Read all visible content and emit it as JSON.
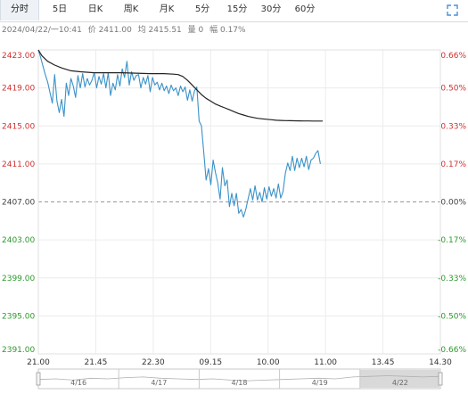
{
  "tabs": [
    {
      "label": "分时",
      "active": true
    },
    {
      "label": "5日",
      "active": false
    },
    {
      "label": "日K",
      "active": false
    },
    {
      "label": "周K",
      "active": false
    },
    {
      "label": "月K",
      "active": false
    },
    {
      "label": "5分",
      "active": false
    },
    {
      "label": "15分",
      "active": false
    },
    {
      "label": "30分",
      "active": false
    },
    {
      "label": "60分",
      "active": false
    }
  ],
  "info": {
    "datetime": "2024/04/22/一10:41",
    "price": "价 2411.00",
    "avg": "均 2415.51",
    "volume": "量 0",
    "change": "幅 0.17%"
  },
  "chart_data": {
    "type": "line",
    "y_left_ticks": [
      "2423.00",
      "2419.00",
      "2415.00",
      "2411.00",
      "2407.00",
      "2403.00",
      "2399.00",
      "2395.00",
      "2391.00"
    ],
    "y_right_ticks": [
      "0.66%",
      "0.50%",
      "0.33%",
      "0.17%",
      "0.00%",
      "-0.17%",
      "-0.33%",
      "-0.50%",
      "-0.66%"
    ],
    "ylim": [
      2391,
      2423
    ],
    "reference": 2407,
    "x_ticks": [
      "21.00",
      "21.45",
      "22.30",
      "09.15",
      "10.00",
      "11.00",
      "13.45",
      "14.30"
    ],
    "x_range_minutes": [
      0,
      345
    ],
    "series": [
      {
        "color": "#3a92c8",
        "x": [
          0,
          2,
          4,
          6,
          8,
          10,
          12,
          14,
          16,
          18,
          20,
          22,
          24,
          26,
          28,
          30,
          32,
          34,
          36,
          38,
          40,
          42,
          44,
          46,
          48,
          50,
          52,
          54,
          56,
          58,
          60,
          62,
          64,
          66,
          68,
          70,
          72,
          74,
          76,
          78,
          80,
          82,
          84,
          86,
          88,
          90,
          92,
          94,
          96,
          98,
          100,
          102,
          104,
          106,
          108,
          110,
          112,
          114,
          116,
          118,
          120,
          122,
          124,
          126,
          128,
          130,
          132,
          134,
          136,
          138,
          140,
          142,
          144,
          146,
          148,
          150,
          152,
          154,
          156,
          158,
          160,
          162,
          164,
          166,
          168,
          170,
          172,
          174,
          176,
          178,
          180,
          182,
          184,
          186,
          188,
          190,
          192,
          194,
          196,
          198,
          200,
          202,
          204,
          206,
          208,
          210,
          212,
          214,
          216,
          218,
          220,
          222,
          224,
          226,
          228,
          230,
          232,
          234,
          236,
          238,
          240,
          242
        ],
        "values": [
          2423.0,
          2422.2,
          2421.3,
          2420.4,
          2419.6,
          2418.5,
          2417.4,
          2420.4,
          2417.6,
          2416.4,
          2417.8,
          2416.0,
          2419.5,
          2418.2,
          2420.0,
          2419.2,
          2418.0,
          2420.3,
          2419.0,
          2420.5,
          2419.1,
          2420.0,
          2419.3,
          2419.8,
          2420.6,
          2419.0,
          2420.2,
          2419.4,
          2420.5,
          2419.0,
          2420.6,
          2418.2,
          2419.5,
          2418.8,
          2420.4,
          2419.2,
          2421.0,
          2420.1,
          2421.8,
          2419.3,
          2420.7,
          2419.8,
          2420.3,
          2420.4,
          2419.0,
          2420.1,
          2419.4,
          2420.3,
          2418.6,
          2420.1,
          2419.3,
          2419.6,
          2418.8,
          2419.5,
          2418.7,
          2419.2,
          2418.4,
          2419.3,
          2418.7,
          2419.0,
          2418.2,
          2419.2,
          2418.6,
          2419.1,
          2417.7,
          2418.8,
          2417.6,
          2418.7,
          2419.1,
          2415.5,
          2415.0,
          2412.2,
          2409.3,
          2410.5,
          2408.8,
          2411.4,
          2410.1,
          2409.0,
          2407.3,
          2410.6,
          2408.7,
          2409.3,
          2406.5,
          2407.9,
          2406.6,
          2407.9,
          2405.8,
          2406.2,
          2405.4,
          2406.2,
          2407.3,
          2408.4,
          2407.2,
          2408.7,
          2407.2,
          2408.0,
          2407.0,
          2408.5,
          2407.3,
          2408.6,
          2407.6,
          2408.4,
          2407.4,
          2408.9,
          2407.4,
          2408.1,
          2410.0,
          2411.1,
          2410.3,
          2411.8,
          2410.3,
          2411.6,
          2410.6,
          2411.6,
          2410.7,
          2411.8,
          2410.4,
          2411.4,
          2411.6,
          2412.1,
          2412.4,
          2411.0
        ]
      },
      {
        "color": "#222222",
        "x": [
          0,
          3,
          8,
          14,
          20,
          28,
          36,
          48,
          60,
          72,
          84,
          96,
          108,
          116,
          120,
          124,
          128,
          132,
          136,
          140,
          144,
          148,
          152,
          156,
          160,
          164,
          168,
          172,
          176,
          180,
          184,
          188,
          192,
          196,
          200,
          204,
          208,
          212,
          216,
          220,
          224,
          228,
          232,
          236,
          240,
          244
        ],
        "values": [
          2423.0,
          2422.4,
          2421.8,
          2421.4,
          2421.1,
          2420.8,
          2420.7,
          2420.6,
          2420.6,
          2420.6,
          2420.55,
          2420.5,
          2420.5,
          2420.45,
          2420.4,
          2420.2,
          2419.8,
          2419.3,
          2418.8,
          2418.3,
          2417.9,
          2417.6,
          2417.3,
          2417.1,
          2416.9,
          2416.7,
          2416.5,
          2416.3,
          2416.15,
          2416.0,
          2415.9,
          2415.8,
          2415.75,
          2415.7,
          2415.65,
          2415.6,
          2415.58,
          2415.56,
          2415.55,
          2415.54,
          2415.53,
          2415.52,
          2415.52,
          2415.51,
          2415.51,
          2415.51
        ]
      }
    ],
    "navigator_dates": [
      "4/16",
      "4/17",
      "4/18",
      "4/19",
      "4/22"
    ]
  }
}
